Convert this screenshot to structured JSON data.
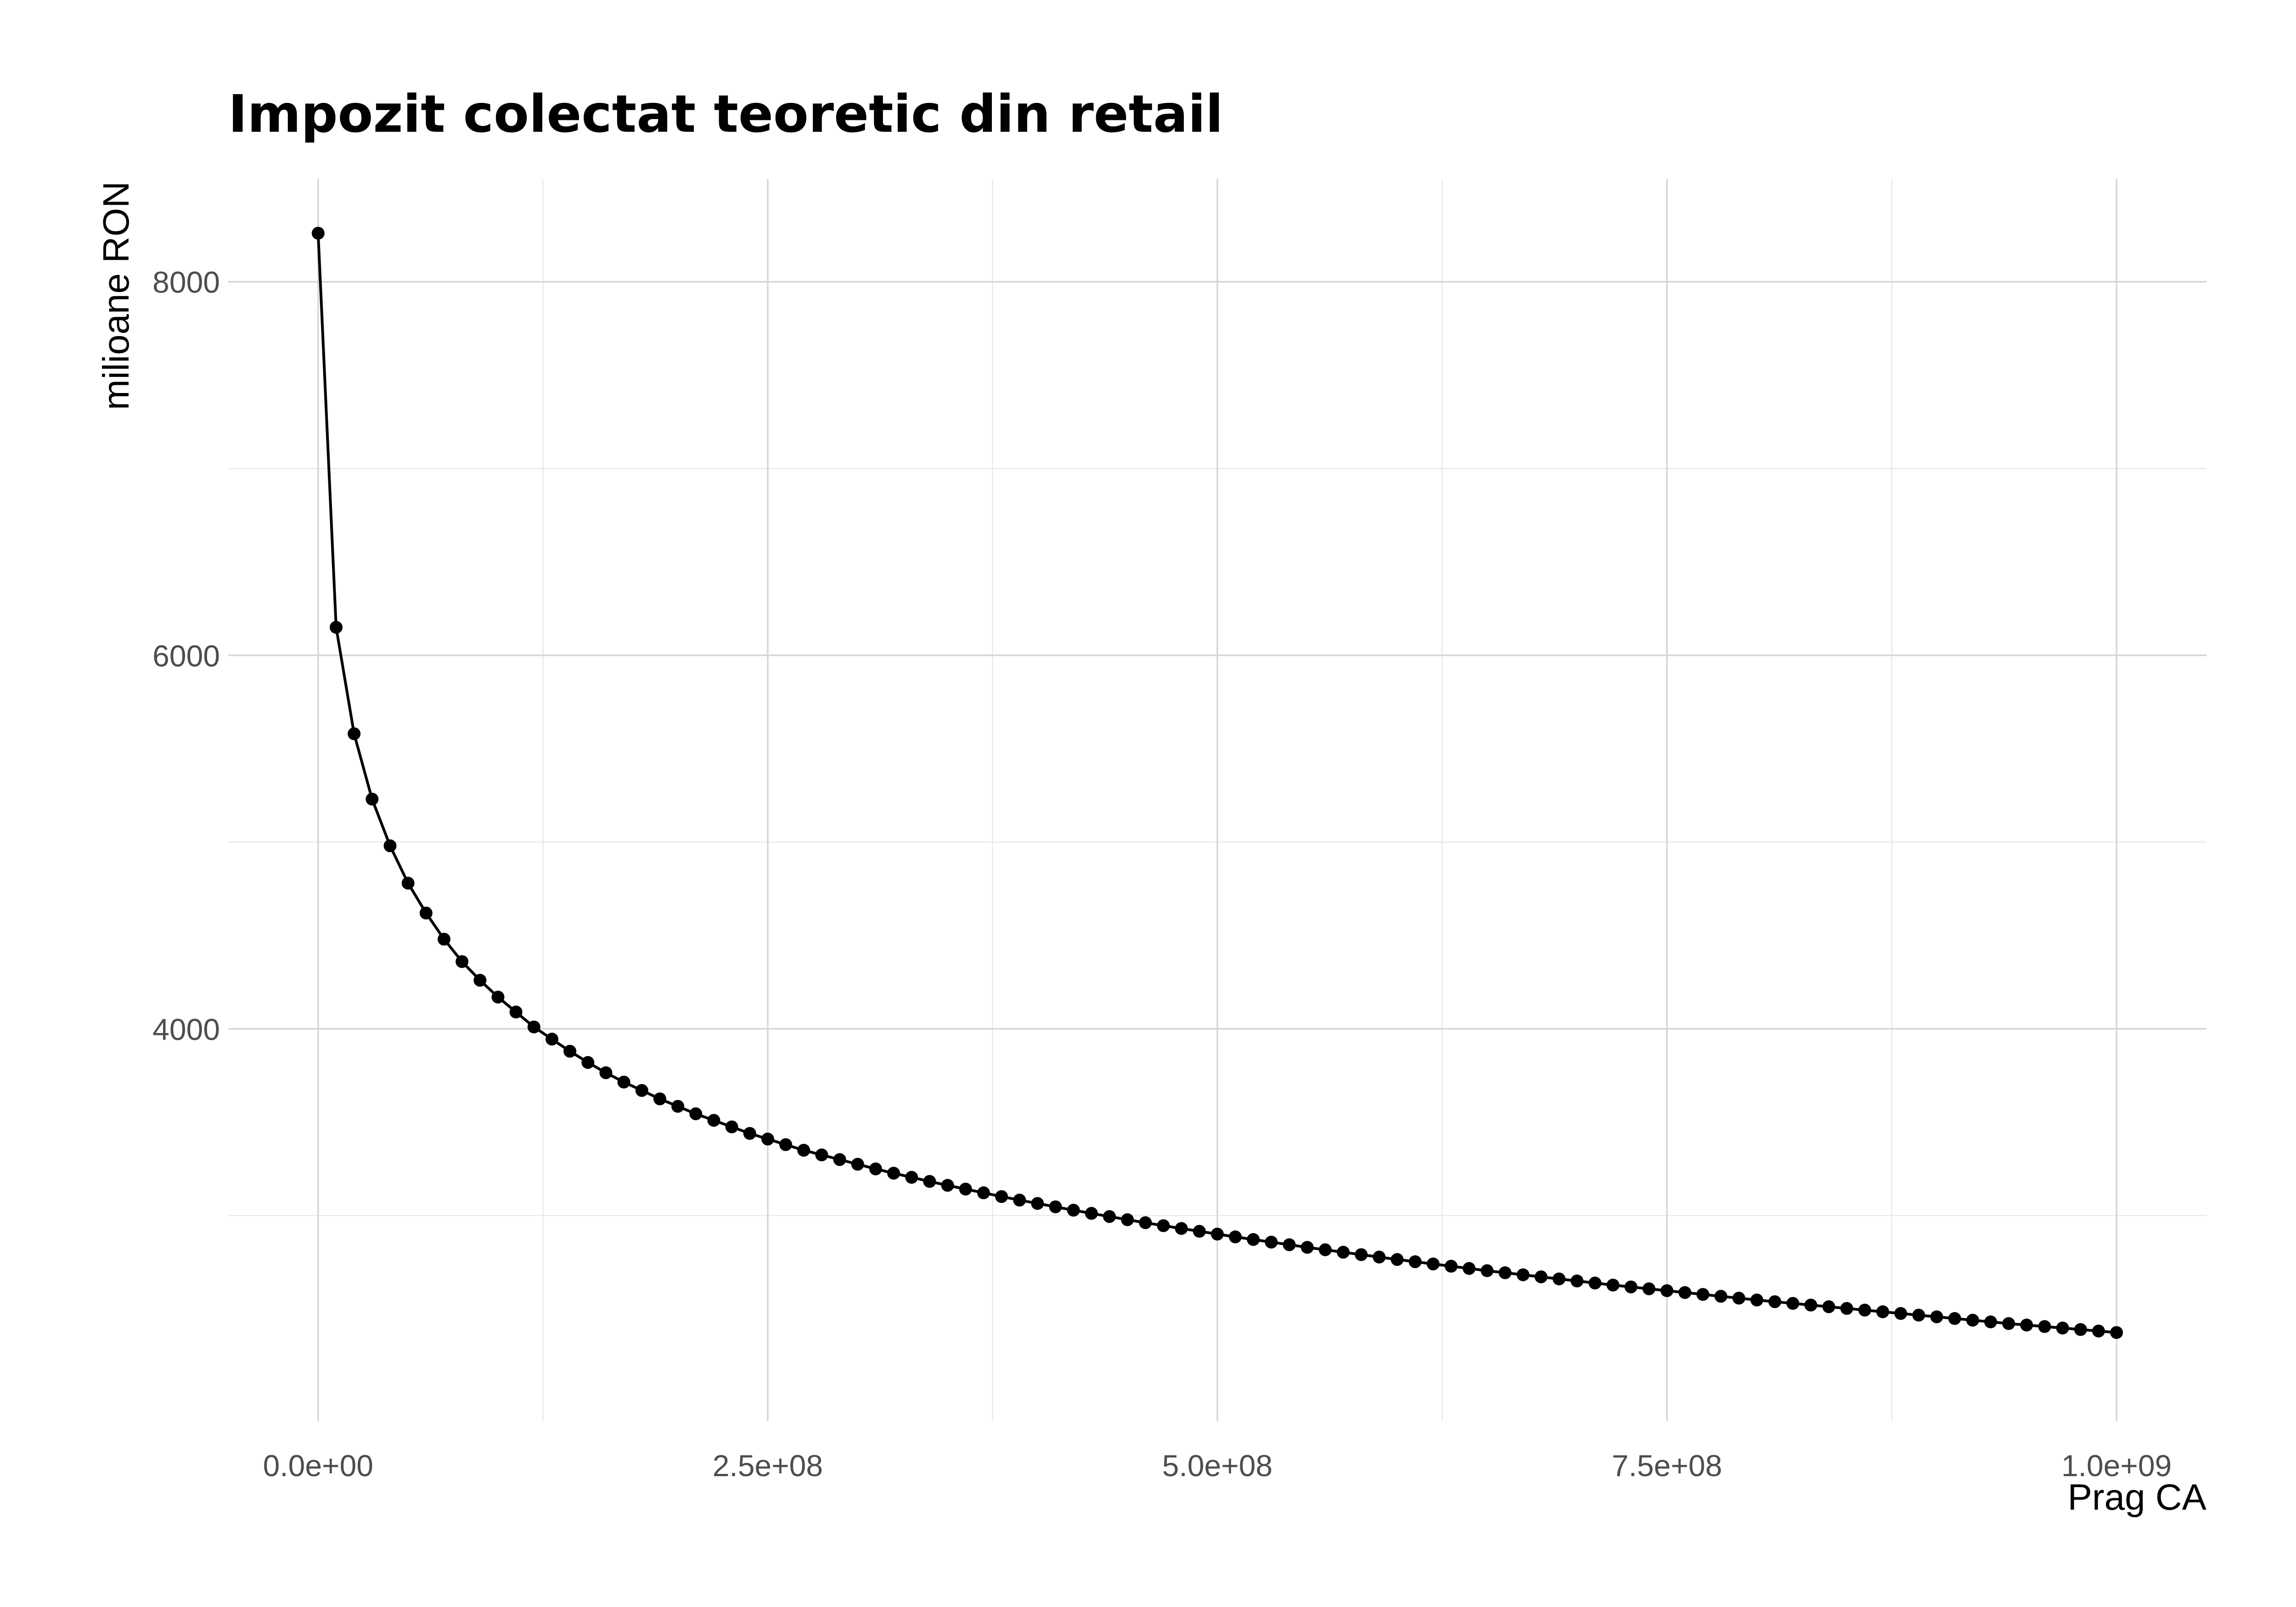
{
  "chart_data": {
    "type": "line",
    "title": "Impozit colectat teoretic din retail",
    "xlabel": "Prag CA",
    "ylabel": "milioane RON",
    "xlim": [
      -50000000,
      1050000000
    ],
    "ylim": [
      1900,
      8550
    ],
    "x_ticks": [
      0,
      250000000,
      500000000,
      750000000,
      1000000000
    ],
    "x_tick_labels": [
      "0.0e+00",
      "2.5e+08",
      "5.0e+08",
      "7.5e+08",
      "1.0e+09"
    ],
    "y_ticks": [
      4000,
      6000,
      8000
    ],
    "y_tick_labels": [
      "4000",
      "6000",
      "8000"
    ],
    "grid": true,
    "legend": "none",
    "marker": "point",
    "colors": {
      "series": "#000000",
      "grid_major": "#d6d6d6",
      "grid_minor": "#e6e6e6",
      "background": "#ffffff"
    },
    "series": [
      {
        "x": [
          0,
          10000000,
          20000000,
          30000000,
          40000000,
          50000000,
          60000000,
          70000000,
          80000000,
          90000000,
          100000000,
          110000000,
          120000000,
          130000000,
          140000000,
          150000000,
          160000000,
          170000000,
          180000000,
          190000000,
          200000000,
          210000000,
          220000000,
          230000000,
          240000000,
          250000000,
          260000000,
          270000000,
          280000000,
          290000000,
          300000000,
          310000000,
          320000000,
          330000000,
          340000000,
          350000000,
          360000000,
          370000000,
          380000000,
          390000000,
          400000000,
          410000000,
          420000000,
          430000000,
          440000000,
          450000000,
          460000000,
          470000000,
          480000000,
          490000000,
          500000000,
          510000000,
          520000000,
          530000000,
          540000000,
          550000000,
          560000000,
          570000000,
          580000000,
          590000000,
          600000000,
          610000000,
          620000000,
          630000000,
          640000000,
          650000000,
          660000000,
          670000000,
          680000000,
          690000000,
          700000000,
          710000000,
          720000000,
          730000000,
          740000000,
          750000000,
          760000000,
          770000000,
          780000000,
          790000000,
          800000000,
          810000000,
          820000000,
          830000000,
          840000000,
          850000000,
          860000000,
          870000000,
          880000000,
          890000000,
          900000000,
          910000000,
          920000000,
          930000000,
          940000000,
          950000000,
          960000000,
          970000000,
          980000000,
          990000000,
          1000000000
        ],
        "y": [
          8260,
          6150,
          5580,
          5230,
          4980,
          4780,
          4620,
          4480,
          4360,
          4260,
          4170,
          4090,
          4010,
          3945,
          3880,
          3820,
          3765,
          3715,
          3670,
          3625,
          3585,
          3545,
          3510,
          3475,
          3440,
          3410,
          3380,
          3350,
          3325,
          3300,
          3275,
          3250,
          3227,
          3205,
          3183,
          3162,
          3142,
          3122,
          3102,
          3083,
          3065,
          3047,
          3029,
          3012,
          2995,
          2978,
          2962,
          2946,
          2931,
          2916,
          2901,
          2886,
          2872,
          2858,
          2844,
          2830,
          2817,
          2804,
          2791,
          2778,
          2765,
          2753,
          2741,
          2729,
          2717,
          2705,
          2694,
          2683,
          2672,
          2661,
          2650,
          2639,
          2628,
          2618,
          2608,
          2598,
          2588,
          2578,
          2568,
          2558,
          2548,
          2539,
          2530,
          2521,
          2512,
          2503,
          2494,
          2485,
          2476,
          2467,
          2458,
          2449,
          2440,
          2431,
          2422,
          2414,
          2406,
          2398,
          2390,
          2382,
          2374
        ]
      }
    ]
  }
}
